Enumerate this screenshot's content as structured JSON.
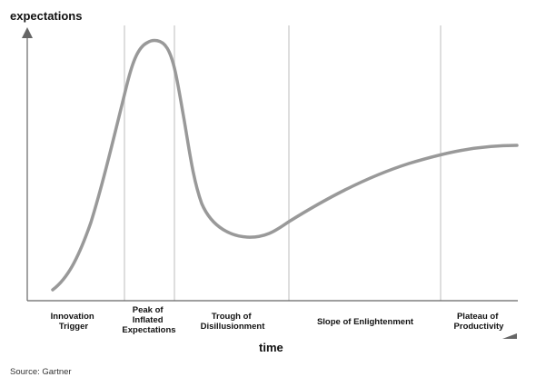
{
  "diagram": {
    "y_axis_label": "expectations",
    "x_axis_label": "time",
    "phases": [
      {
        "lines": [
          "Innovation",
          "Trigger"
        ]
      },
      {
        "lines": [
          "Peak of",
          "Inflated",
          "Expectations"
        ]
      },
      {
        "lines": [
          "Trough of",
          "Disillusionment"
        ]
      },
      {
        "lines": [
          "Slope of Enlightenment"
        ]
      },
      {
        "lines": [
          "Plateau of",
          "Productivity"
        ]
      }
    ],
    "source": "Source: Gartner",
    "colors": {
      "curve": "#999999",
      "axis": "#666666",
      "divider": "#d3d3d3",
      "text": "#111111"
    }
  }
}
